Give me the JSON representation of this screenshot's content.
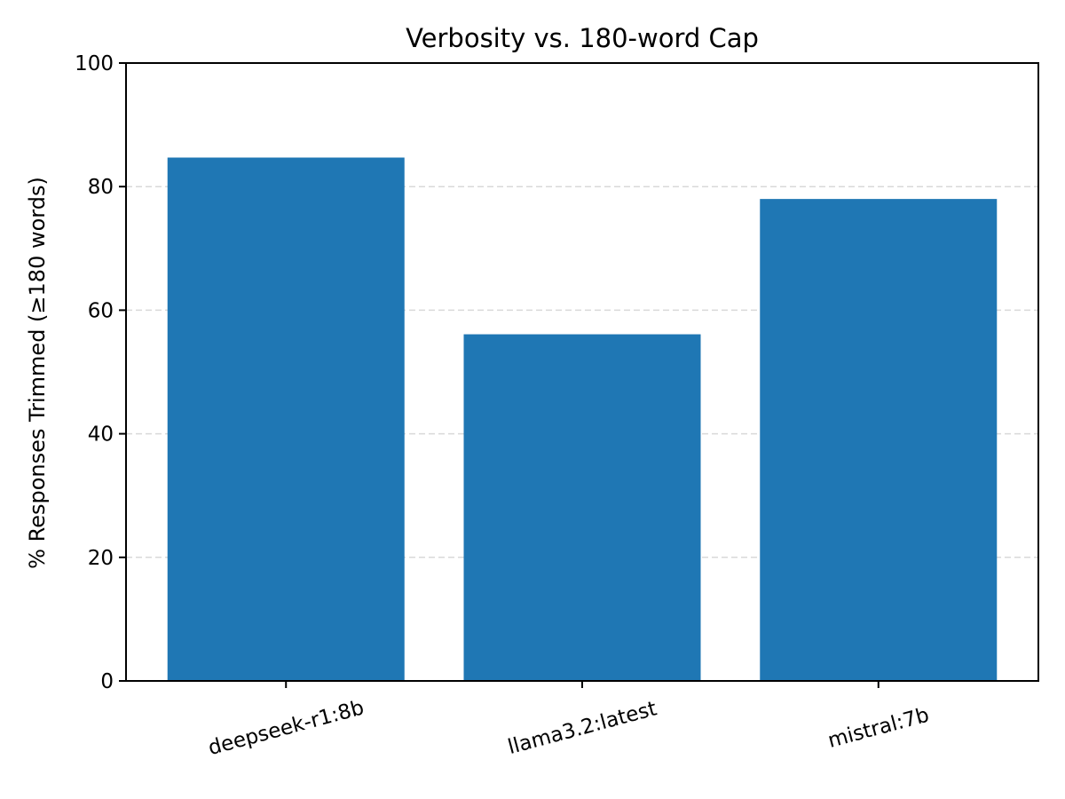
{
  "chart_data": {
    "type": "bar",
    "title": "Verbosity vs. 180-word Cap",
    "xlabel": "",
    "ylabel": "% Responses Trimmed (≥180 words)",
    "categories": [
      "deepseek-r1:8b",
      "llama3.2:latest",
      "mistral:7b"
    ],
    "values": [
      84.7,
      56.1,
      78.0
    ],
    "ylim": [
      0,
      100
    ],
    "yticks": [
      0,
      20,
      40,
      60,
      80,
      100
    ],
    "grid": "horizontal dashed",
    "bar_color": "#1f77b4",
    "grid_color": "#d9d9d9"
  }
}
